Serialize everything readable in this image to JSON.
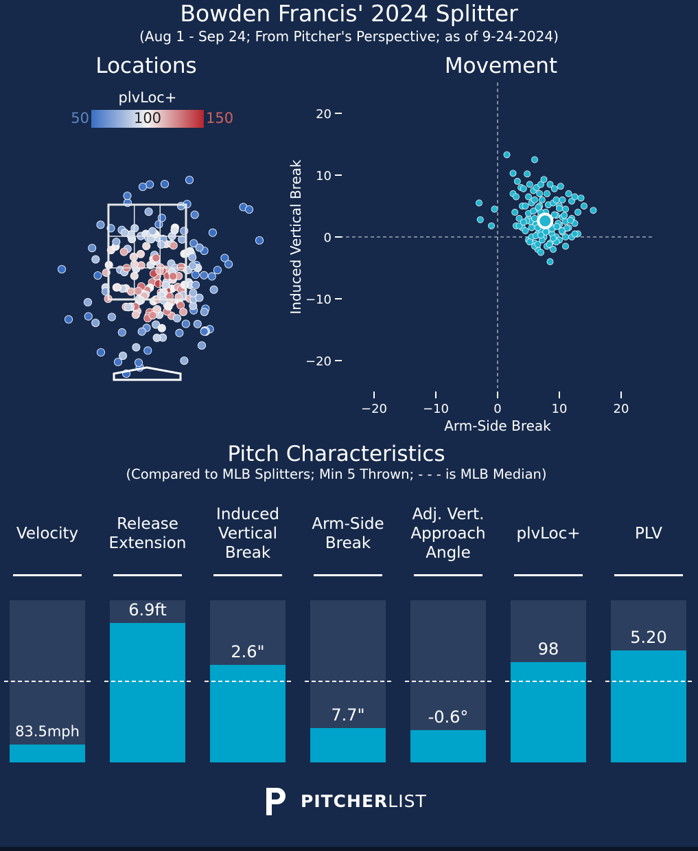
{
  "header": {
    "title": "Bowden Francis' 2024 Splitter",
    "subtitle": "(Aug 1 - Sep 24; From Pitcher's Perspective; as of 9-24-2024)"
  },
  "locations": {
    "title": "Locations",
    "colorbar": {
      "label": "plvLoc+",
      "min_label": "50",
      "mid_label": "100",
      "max_label": "150",
      "low_color": "#3a6fc4",
      "mid_color": "#f2f2f2",
      "high_color": "#b8242c"
    }
  },
  "chart_data": [
    {
      "type": "scatter",
      "title": "Movement",
      "xlabel": "Arm-Side Break",
      "ylabel": "Induced Vertical Break",
      "xlim": [
        -25,
        25
      ],
      "ylim": [
        -25,
        25
      ],
      "xticks": [
        -20,
        -10,
        0,
        10,
        20
      ],
      "yticks": [
        20,
        10,
        0,
        -10,
        -20
      ],
      "average": {
        "x": 7.7,
        "y": 2.6
      },
      "point_color": "#22b5d0",
      "x": [
        -3,
        -2.8,
        -1,
        -0.5,
        1.5,
        2.5,
        2.5,
        2.8,
        3,
        3,
        3.2,
        3.5,
        3.8,
        4,
        4,
        4.2,
        4.5,
        4.5,
        4.8,
        5,
        5,
        5,
        5.2,
        5.3,
        5.5,
        5.5,
        5.8,
        6,
        6,
        6,
        6,
        6.2,
        6.3,
        6.5,
        6.5,
        6.5,
        6.8,
        7,
        7,
        7,
        7,
        7.2,
        7.5,
        7.5,
        7.5,
        7.8,
        8,
        8,
        8,
        8.2,
        8.5,
        8.5,
        8.5,
        8.8,
        9,
        9,
        9,
        9.2,
        9.5,
        9.5,
        9.5,
        10,
        10,
        10,
        10.2,
        10.5,
        10.5,
        10.5,
        11,
        11,
        11,
        11,
        11.5,
        11.5,
        12,
        12,
        12,
        12.5,
        12.5,
        13,
        13,
        13.5,
        14,
        15.5,
        5.5,
        6.5,
        8,
        8.5,
        9.5,
        10.5,
        7.2,
        6,
        7,
        5,
        8.2,
        9.8,
        4.7,
        6.8,
        7.8,
        8.6,
        10.8,
        11.8,
        5.8,
        9,
        10,
        3.5,
        6.2,
        12.5,
        7.5,
        8.8,
        6.5,
        11.2,
        9.2,
        7,
        4.2,
        5.2,
        10.4,
        9.6,
        8.4,
        6.6
      ],
      "y": [
        5.5,
        2.8,
        1.8,
        4.5,
        13.3,
        10.3,
        7,
        4,
        6.5,
        1.8,
        9,
        3,
        8,
        1.5,
        5,
        7.8,
        1,
        5,
        10.2,
        3,
        6.5,
        -0.5,
        8.5,
        2.5,
        0,
        5.5,
        7.5,
        3,
        -1,
        12.5,
        6,
        2,
        8,
        -2,
        0.5,
        4.5,
        7,
        1.2,
        3.5,
        -2.5,
        8.5,
        6,
        0,
        2.2,
        9.3,
        4,
        -1.5,
        1,
        7,
        5.2,
        -4,
        3,
        8.5,
        0.5,
        1.5,
        5.5,
        -2,
        7.8,
        0,
        3.5,
        6,
        -0.5,
        2,
        5,
        8.2,
        1,
        3.2,
        6,
        0,
        2.5,
        4.5,
        -1.5,
        7,
        1.5,
        5.8,
        3,
        0,
        6.5,
        2.2,
        0.5,
        4,
        6.3,
        5,
        4.3,
        1.5,
        1.5,
        1,
        -1,
        -0.8,
        0.8,
        -0.5,
        -1.5,
        4,
        3.8,
        2.8,
        2.2,
        2.6,
        5,
        0.8,
        1.8,
        3.5,
        2.7,
        4.2,
        -0.2,
        4.6,
        1.8,
        0.2,
        0.5,
        3.3,
        1.3,
        -1.2,
        1.4,
        3.6,
        0.3,
        2.4,
        -0.8,
        1,
        1.7,
        -1.2,
        4.8
      ]
    },
    {
      "type": "bar",
      "title": "Pitch Characteristics",
      "subtitle": "(Compared to MLB Splitters; Min 5 Thrown; - - - is MLB Median)",
      "categories": [
        "Velocity",
        "Release Extension",
        "Induced Vertical Break",
        "Arm-Side Break",
        "Adj. Vert. Approach Angle",
        "plvLoc+",
        "PLV"
      ],
      "category_lines": [
        [
          "Velocity"
        ],
        [
          "Release",
          "Extension"
        ],
        [
          "Induced",
          "Vertical",
          "Break"
        ],
        [
          "Arm-Side",
          "Break"
        ],
        [
          "Adj. Vert.",
          "Approach",
          "Angle"
        ],
        [
          "plvLoc+"
        ],
        [
          "PLV"
        ]
      ],
      "labels": [
        "83.5mph",
        "6.9ft",
        "2.6\"",
        "7.7\"",
        "-0.6°",
        "98",
        "5.20"
      ],
      "values": [
        11,
        86,
        60,
        21,
        20,
        62,
        69
      ],
      "value_scale": "percentile",
      "ylim": [
        0,
        100
      ],
      "median": 50,
      "bar_color": "#00a3c9",
      "track_color": "#2c3f5f"
    }
  ],
  "footer": {
    "brand_bold": "PITCHER",
    "brand_light": "LIST"
  }
}
